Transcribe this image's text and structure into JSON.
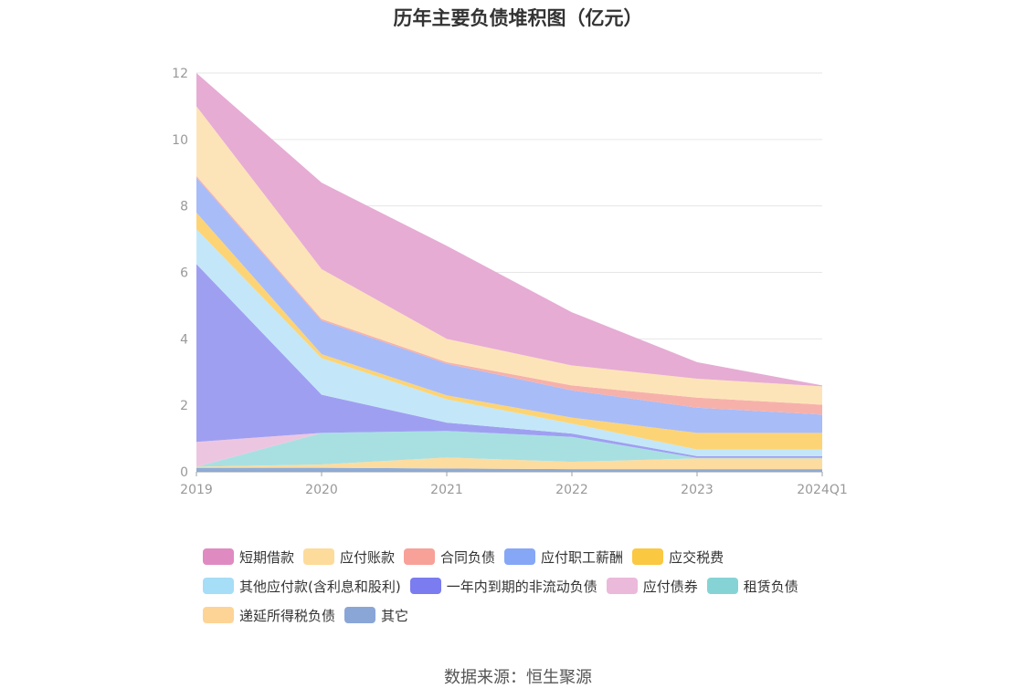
{
  "title": "历年主要负债堆积图（亿元）",
  "source": "数据来源：恒生聚源",
  "chart_data": {
    "type": "area",
    "stacked": true,
    "title": "历年主要负债堆积图（亿元）",
    "categories": [
      "2019",
      "2020",
      "2021",
      "2022",
      "2023",
      "2024Q1"
    ],
    "ylim": [
      0,
      12
    ],
    "yticks": [
      0,
      2,
      4,
      6,
      8,
      10,
      12
    ],
    "grid": true,
    "legend_position": "bottom",
    "series": [
      {
        "name": "其它",
        "color": "#8eacd8",
        "values": [
          0.12,
          0.12,
          0.1,
          0.08,
          0.08,
          0.08
        ]
      },
      {
        "name": "递延所得税负债",
        "color": "#fddca0",
        "values": [
          0.03,
          0.1,
          0.33,
          0.22,
          0.32,
          0.32
        ]
      },
      {
        "name": "租赁负债",
        "color": "#a8e0e2",
        "values": [
          0.0,
          0.95,
          0.8,
          0.75,
          0.02,
          0.02
        ]
      },
      {
        "name": "应付债券",
        "color": "#ecc6e1",
        "values": [
          0.75,
          0.0,
          0.0,
          0.0,
          0.0,
          0.0
        ]
      },
      {
        "name": "一年内到期的非流动负债",
        "color": "#9f9ff2",
        "values": [
          5.35,
          1.15,
          0.25,
          0.1,
          0.05,
          0.05
        ]
      },
      {
        "name": "其他应付款(含利息和股利)",
        "color": "#c3e7f8",
        "values": [
          1.05,
          1.1,
          0.7,
          0.3,
          0.2,
          0.2
        ]
      },
      {
        "name": "应交税费",
        "color": "#fdd475",
        "values": [
          0.5,
          0.12,
          0.12,
          0.18,
          0.5,
          0.5
        ]
      },
      {
        "name": "应付职工薪酬",
        "color": "#a8bcf8",
        "values": [
          1.05,
          1.01,
          0.95,
          0.82,
          0.76,
          0.55
        ]
      },
      {
        "name": "合同负债",
        "color": "#f7b1ab",
        "values": [
          0.05,
          0.05,
          0.05,
          0.15,
          0.3,
          0.3
        ]
      },
      {
        "name": "应付账款",
        "color": "#fde4b8",
        "values": [
          2.1,
          1.5,
          0.7,
          0.6,
          0.57,
          0.55
        ]
      },
      {
        "name": "短期借款",
        "color": "#e6acd4",
        "values": [
          1.0,
          2.6,
          2.8,
          1.6,
          0.5,
          0.03
        ]
      }
    ]
  },
  "legend": [
    {
      "label": "短期借款",
      "color": "#e08ac2"
    },
    {
      "label": "应付账款",
      "color": "#fddb9a"
    },
    {
      "label": "合同负债",
      "color": "#f7a199"
    },
    {
      "label": "应付职工薪酬",
      "color": "#86a7f6"
    },
    {
      "label": "应交税费",
      "color": "#fbc842"
    },
    {
      "label": "其他应付款(含利息和股利)",
      "color": "#a6ddf7"
    },
    {
      "label": "一年内到期的非流动负债",
      "color": "#7a7cef"
    },
    {
      "label": "应付债券",
      "color": "#ebb9da"
    },
    {
      "label": "租赁负债",
      "color": "#86d3d5"
    },
    {
      "label": "递延所得税负债",
      "color": "#fdd496"
    },
    {
      "label": "其它",
      "color": "#8aa6d6"
    }
  ]
}
